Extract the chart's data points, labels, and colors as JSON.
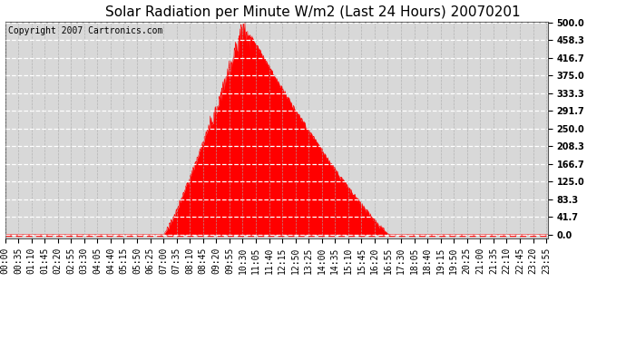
{
  "title": "Solar Radiation per Minute W/m2 (Last 24 Hours) 20070201",
  "copyright_text": "Copyright 2007 Cartronics.com",
  "y_min": 0.0,
  "y_max": 500.0,
  "y_ticks": [
    0.0,
    41.7,
    83.3,
    125.0,
    166.7,
    208.3,
    250.0,
    291.7,
    333.3,
    375.0,
    416.7,
    458.3,
    500.0
  ],
  "fill_color": "#FF0000",
  "line_color": "#FF0000",
  "bg_color": "#FFFFFF",
  "plot_bg_color": "#D8D8D8",
  "grid_color_h": "#FFFFFF",
  "grid_color_v": "#AAAAAA",
  "dashed_line_color": "#FF0000",
  "title_fontsize": 11,
  "copyright_fontsize": 7,
  "tick_fontsize": 7,
  "total_minutes": 1440,
  "sunrise_minute": 420,
  "sunset_minute": 1020,
  "peak_minute": 630,
  "peak_value": 500
}
